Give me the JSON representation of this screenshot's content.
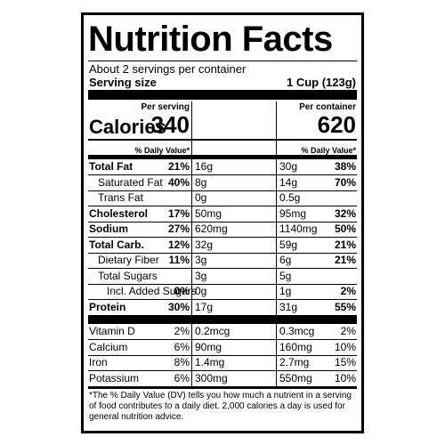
{
  "title": "Nutrition Facts",
  "servings": "About 2 servings per container",
  "serving_size": {
    "label": "Serving size",
    "value": "1 Cup (123g)"
  },
  "columns": [
    "Per serving",
    "Per container"
  ],
  "calories": {
    "label": "Calories",
    "values": [
      "340",
      "620"
    ]
  },
  "daily_value_header": "% Daily Value*",
  "nutrients": [
    {
      "name": "Total Fat",
      "serving": {
        "amount": "16g",
        "dv": "21%"
      },
      "container": {
        "amount": "30g",
        "dv": "38%"
      }
    },
    {
      "name": "Saturated Fat",
      "serving": {
        "amount": "8g",
        "dv": "40%"
      },
      "container": {
        "amount": "14g",
        "dv": "70%"
      }
    },
    {
      "name": "Trans Fat",
      "serving": {
        "amount": "0g"
      },
      "container": {
        "amount": "0.5g"
      }
    },
    {
      "name": "Cholesterol",
      "serving": {
        "amount": "50mg",
        "dv": "17%"
      },
      "container": {
        "amount": "95mg",
        "dv": "32%"
      }
    },
    {
      "name": "Sodium",
      "serving": {
        "amount": "620mg",
        "dv": "27%"
      },
      "container": {
        "amount": "1140mg",
        "dv": "50%"
      }
    },
    {
      "name": "Total Carb.",
      "serving": {
        "amount": "32g",
        "dv": "12%"
      },
      "container": {
        "amount": "59g",
        "dv": "21%"
      }
    },
    {
      "name": "Dietary Fiber",
      "serving": {
        "amount": "3g",
        "dv": "11%"
      },
      "container": {
        "amount": "6g",
        "dv": "21%"
      }
    },
    {
      "name": "Total Sugars",
      "serving": {
        "amount": "3g"
      },
      "container": {
        "amount": "5g"
      }
    },
    {
      "name": "Incl. Added Sugars",
      "serving": {
        "amount": "0g",
        "dv": "0%"
      },
      "container": {
        "amount": "1g",
        "dv": "2%"
      }
    },
    {
      "name": "Protein",
      "serving": {
        "amount": "17g",
        "dv": "30%"
      },
      "container": {
        "amount": "31g",
        "dv": "55%"
      }
    }
  ],
  "vitamins": [
    {
      "name": "Vitamin D",
      "serving": {
        "amount": "0.2mcg",
        "dv": "2%"
      },
      "container": {
        "amount": "0.3mcg",
        "dv": "2%"
      }
    },
    {
      "name": "Calcium",
      "serving": {
        "amount": "90mg",
        "dv": "6%"
      },
      "container": {
        "amount": "160mg",
        "dv": "10%"
      }
    },
    {
      "name": "Iron",
      "serving": {
        "amount": "1.4mg",
        "dv": "8%"
      },
      "container": {
        "amount": "2.7mg",
        "dv": "15%"
      }
    },
    {
      "name": "Potassium",
      "serving": {
        "amount": "300mg",
        "dv": "6%"
      },
      "container": {
        "amount": "550mg",
        "dv": "10%"
      }
    }
  ],
  "footnote": "*The % Daily Value (DV) tells you how much a nutrient in a serving of food contributes to a daily diet. 2,000 calories a day is used for general nutrition advice."
}
